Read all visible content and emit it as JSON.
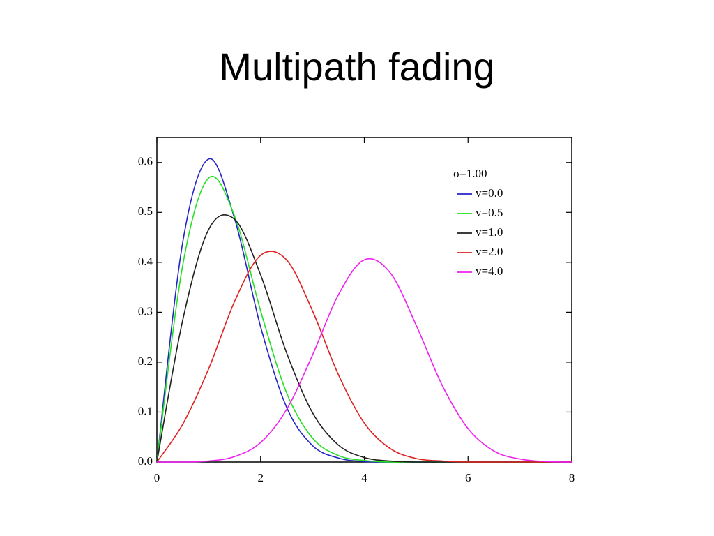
{
  "chart_data": {
    "type": "line",
    "title": "Multipath fading",
    "legend_title": "σ=1.00",
    "legend": "top-right",
    "x": [
      0,
      0.5,
      1,
      1.5,
      2,
      2.5,
      3,
      3.5,
      4,
      4.5,
      5,
      5.5,
      6,
      6.5,
      7,
      7.5,
      8
    ],
    "series": [
      {
        "name": "v=0.0",
        "color": "#2424c8",
        "values": [
          0,
          0.441,
          0.607,
          0.487,
          0.271,
          0.11,
          0.033,
          0.008,
          0.001,
          0,
          0,
          0,
          0,
          0,
          0,
          0,
          0
        ]
      },
      {
        "name": "v=0.5",
        "color": "#22e022",
        "values": [
          0,
          0.395,
          0.569,
          0.492,
          0.303,
          0.139,
          0.048,
          0.013,
          0.003,
          0,
          0,
          0,
          0,
          0,
          0,
          0,
          0
        ]
      },
      {
        "name": "v=1.0",
        "color": "#202020",
        "values": [
          0,
          0.285,
          0.466,
          0.486,
          0.375,
          0.219,
          0.099,
          0.034,
          0.009,
          0.002,
          0,
          0,
          0,
          0,
          0,
          0,
          0
        ]
      },
      {
        "name": "v=2.0",
        "color": "#e02020",
        "values": [
          0,
          0.076,
          0.187,
          0.322,
          0.414,
          0.405,
          0.303,
          0.175,
          0.078,
          0.027,
          0.007,
          0.002,
          0,
          0,
          0,
          0,
          0
        ]
      },
      {
        "name": "v=4.0",
        "color": "#f020f0",
        "values": [
          0,
          0,
          0.002,
          0.011,
          0.039,
          0.105,
          0.214,
          0.335,
          0.405,
          0.379,
          0.274,
          0.154,
          0.067,
          0.022,
          0.006,
          0.001,
          0
        ]
      }
    ],
    "xlim": [
      0,
      8
    ],
    "xticks": [
      0,
      2,
      4,
      6,
      8
    ],
    "ylim": [
      0,
      0.65
    ],
    "yticks": [
      {
        "value": 0,
        "label": "0.0"
      },
      0.1,
      0.2,
      0.3,
      0.4,
      0.5,
      0.6
    ]
  }
}
